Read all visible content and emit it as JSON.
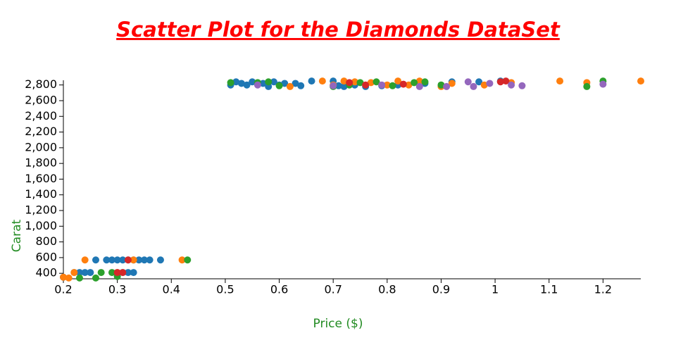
{
  "chart_data": {
    "type": "scatter",
    "title": "Scatter Plot for the Diamonds DataSet",
    "x_label": "Price ($)",
    "y_label": "Carat",
    "xlim": [
      0.2,
      1.27
    ],
    "ylim": [
      330,
      2860
    ],
    "xticks": [
      0.2,
      0.3,
      0.4,
      0.5,
      0.6,
      0.7,
      0.8,
      0.9,
      1.0,
      1.1,
      1.2
    ],
    "yticks": [
      {
        "value": 400,
        "label": "400"
      },
      {
        "value": 600,
        "label": "600"
      },
      {
        "value": 800,
        "label": "800"
      },
      {
        "value": 1000,
        "label": "1,000"
      },
      {
        "value": 1200,
        "label": "1,200"
      },
      {
        "value": 1400,
        "label": "1,400"
      },
      {
        "value": 1600,
        "label": "1,600"
      },
      {
        "value": 1800,
        "label": "1,800"
      },
      {
        "value": 2000,
        "label": "2,000"
      },
      {
        "value": 2200,
        "label": "2,200"
      },
      {
        "value": 2400,
        "label": "2,400"
      },
      {
        "value": 2600,
        "label": "2,600"
      },
      {
        "value": 2800,
        "label": "2,800"
      }
    ],
    "series": [
      {
        "color": "#1f77b4",
        "x": [
          0.22,
          0.23,
          0.26,
          0.28,
          0.29,
          0.3,
          0.31,
          0.32,
          0.33,
          0.34,
          0.35,
          0.36,
          0.38,
          0.31,
          0.32,
          0.33,
          0.25,
          0.24,
          0.2,
          0.51,
          0.52,
          0.53,
          0.54,
          0.55,
          0.57,
          0.58,
          0.59,
          0.6,
          0.61,
          0.63,
          0.64,
          0.66,
          0.7,
          0.71,
          0.72,
          0.74,
          0.76,
          0.79,
          0.82,
          0.87,
          0.92,
          0.97,
          1.01
        ],
        "values": [
          410,
          410,
          570,
          570,
          570,
          570,
          570,
          570,
          570,
          570,
          570,
          570,
          570,
          410,
          410,
          410,
          410,
          410,
          350,
          2800,
          2840,
          2820,
          2800,
          2840,
          2820,
          2780,
          2840,
          2800,
          2820,
          2820,
          2790,
          2850,
          2850,
          2790,
          2780,
          2800,
          2780,
          2790,
          2800,
          2820,
          2840,
          2840,
          2850
        ]
      },
      {
        "color": "#ff7f0e",
        "x": [
          0.2,
          0.21,
          0.22,
          0.24,
          0.3,
          0.33,
          0.42,
          0.62,
          0.68,
          0.7,
          0.72,
          0.74,
          0.77,
          0.8,
          0.82,
          0.84,
          0.86,
          0.9,
          0.92,
          0.98,
          1.03,
          1.12,
          1.17,
          1.27
        ],
        "values": [
          350,
          340,
          410,
          570,
          410,
          570,
          570,
          2780,
          2850,
          2800,
          2850,
          2840,
          2830,
          2800,
          2850,
          2800,
          2850,
          2780,
          2820,
          2800,
          2830,
          2850,
          2830,
          2850
        ]
      },
      {
        "color": "#2ca02c",
        "x": [
          0.23,
          0.26,
          0.27,
          0.29,
          0.3,
          0.43,
          0.51,
          0.56,
          0.58,
          0.6,
          0.7,
          0.73,
          0.75,
          0.78,
          0.81,
          0.85,
          0.87,
          0.9,
          1.17,
          1.2
        ],
        "values": [
          340,
          340,
          410,
          410,
          360,
          570,
          2830,
          2830,
          2840,
          2790,
          2780,
          2800,
          2830,
          2840,
          2790,
          2830,
          2840,
          2800,
          2780,
          2850
        ]
      },
      {
        "color": "#d62728",
        "x": [
          0.3,
          0.32,
          0.31,
          0.73,
          0.76,
          0.83,
          1.01,
          1.02
        ],
        "values": [
          410,
          570,
          410,
          2830,
          2800,
          2810,
          2840,
          2850
        ]
      },
      {
        "color": "#9467bd",
        "x": [
          0.56,
          0.7,
          0.79,
          0.86,
          0.91,
          0.95,
          0.96,
          0.99,
          1.03,
          1.05,
          1.2
        ],
        "values": [
          2800,
          2790,
          2800,
          2780,
          2780,
          2840,
          2780,
          2820,
          2800,
          2790,
          2810
        ]
      }
    ]
  }
}
